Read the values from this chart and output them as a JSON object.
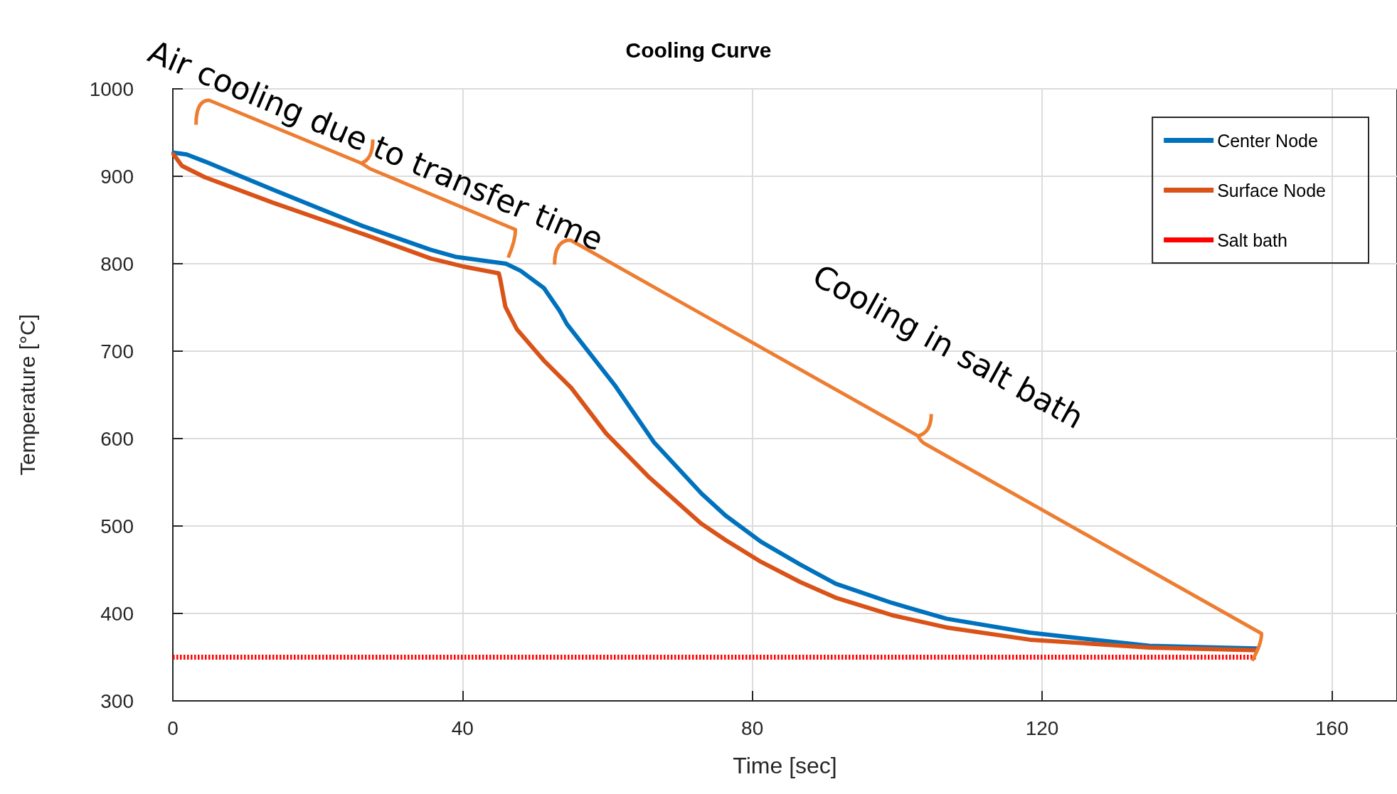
{
  "chart_data": {
    "type": "line",
    "title": "Cooling Curve",
    "xlabel": "Time [sec]",
    "ylabel": "Temperature [°C]",
    "xlim": [
      0,
      169
    ],
    "xticks": [
      0,
      40,
      80,
      120,
      160
    ],
    "ylim": [
      300,
      1000
    ],
    "yticks": [
      300,
      400,
      500,
      600,
      700,
      800,
      900,
      1000
    ],
    "grid": true,
    "legend": "top right",
    "marker": "none",
    "annotations": [
      "Air cooling due to transfer time",
      "Cooling in salt bath"
    ],
    "series": [
      {
        "name": "Center Node",
        "color": "#0072bd",
        "line_style": "solid",
        "x": [
          0.1,
          1.9,
          4.4,
          13.75,
          26.25,
          35.6,
          39,
          46,
          48,
          51.25,
          53.4,
          54.4,
          61.1,
          66.4,
          73,
          76.3,
          81.2,
          86.6,
          91.5,
          99.3,
          106.8,
          118.3,
          134.8,
          149.6
        ],
        "values": [
          927,
          925,
          917,
          885,
          843,
          816,
          808,
          800,
          792,
          772,
          746,
          731,
          660,
          596,
          537,
          512,
          482,
          456,
          434,
          412,
          394,
          378,
          363,
          360
        ]
      },
      {
        "name": "Surface Node",
        "color": "#d95319",
        "line_style": "solid",
        "x": [
          0.1,
          1.25,
          4.4,
          13.75,
          26.25,
          35.6,
          40,
          45,
          45.2,
          45.9,
          47.5,
          51.25,
          55,
          59.8,
          65.6,
          72.9,
          76.3,
          81.2,
          86.6,
          91.5,
          99.3,
          106.8,
          118.3,
          134.8,
          149.6
        ],
        "values": [
          925,
          912,
          899,
          870,
          834,
          806,
          797,
          789,
          782,
          751,
          725,
          689,
          658,
          606,
          557,
          503,
          484,
          459,
          436,
          418,
          398,
          384,
          370,
          361,
          358
        ]
      },
      {
        "name": "Salt bath",
        "color": "#ff0000",
        "line_style": "dotted",
        "x": [
          0,
          149.6
        ],
        "values": [
          350,
          350
        ]
      }
    ]
  }
}
